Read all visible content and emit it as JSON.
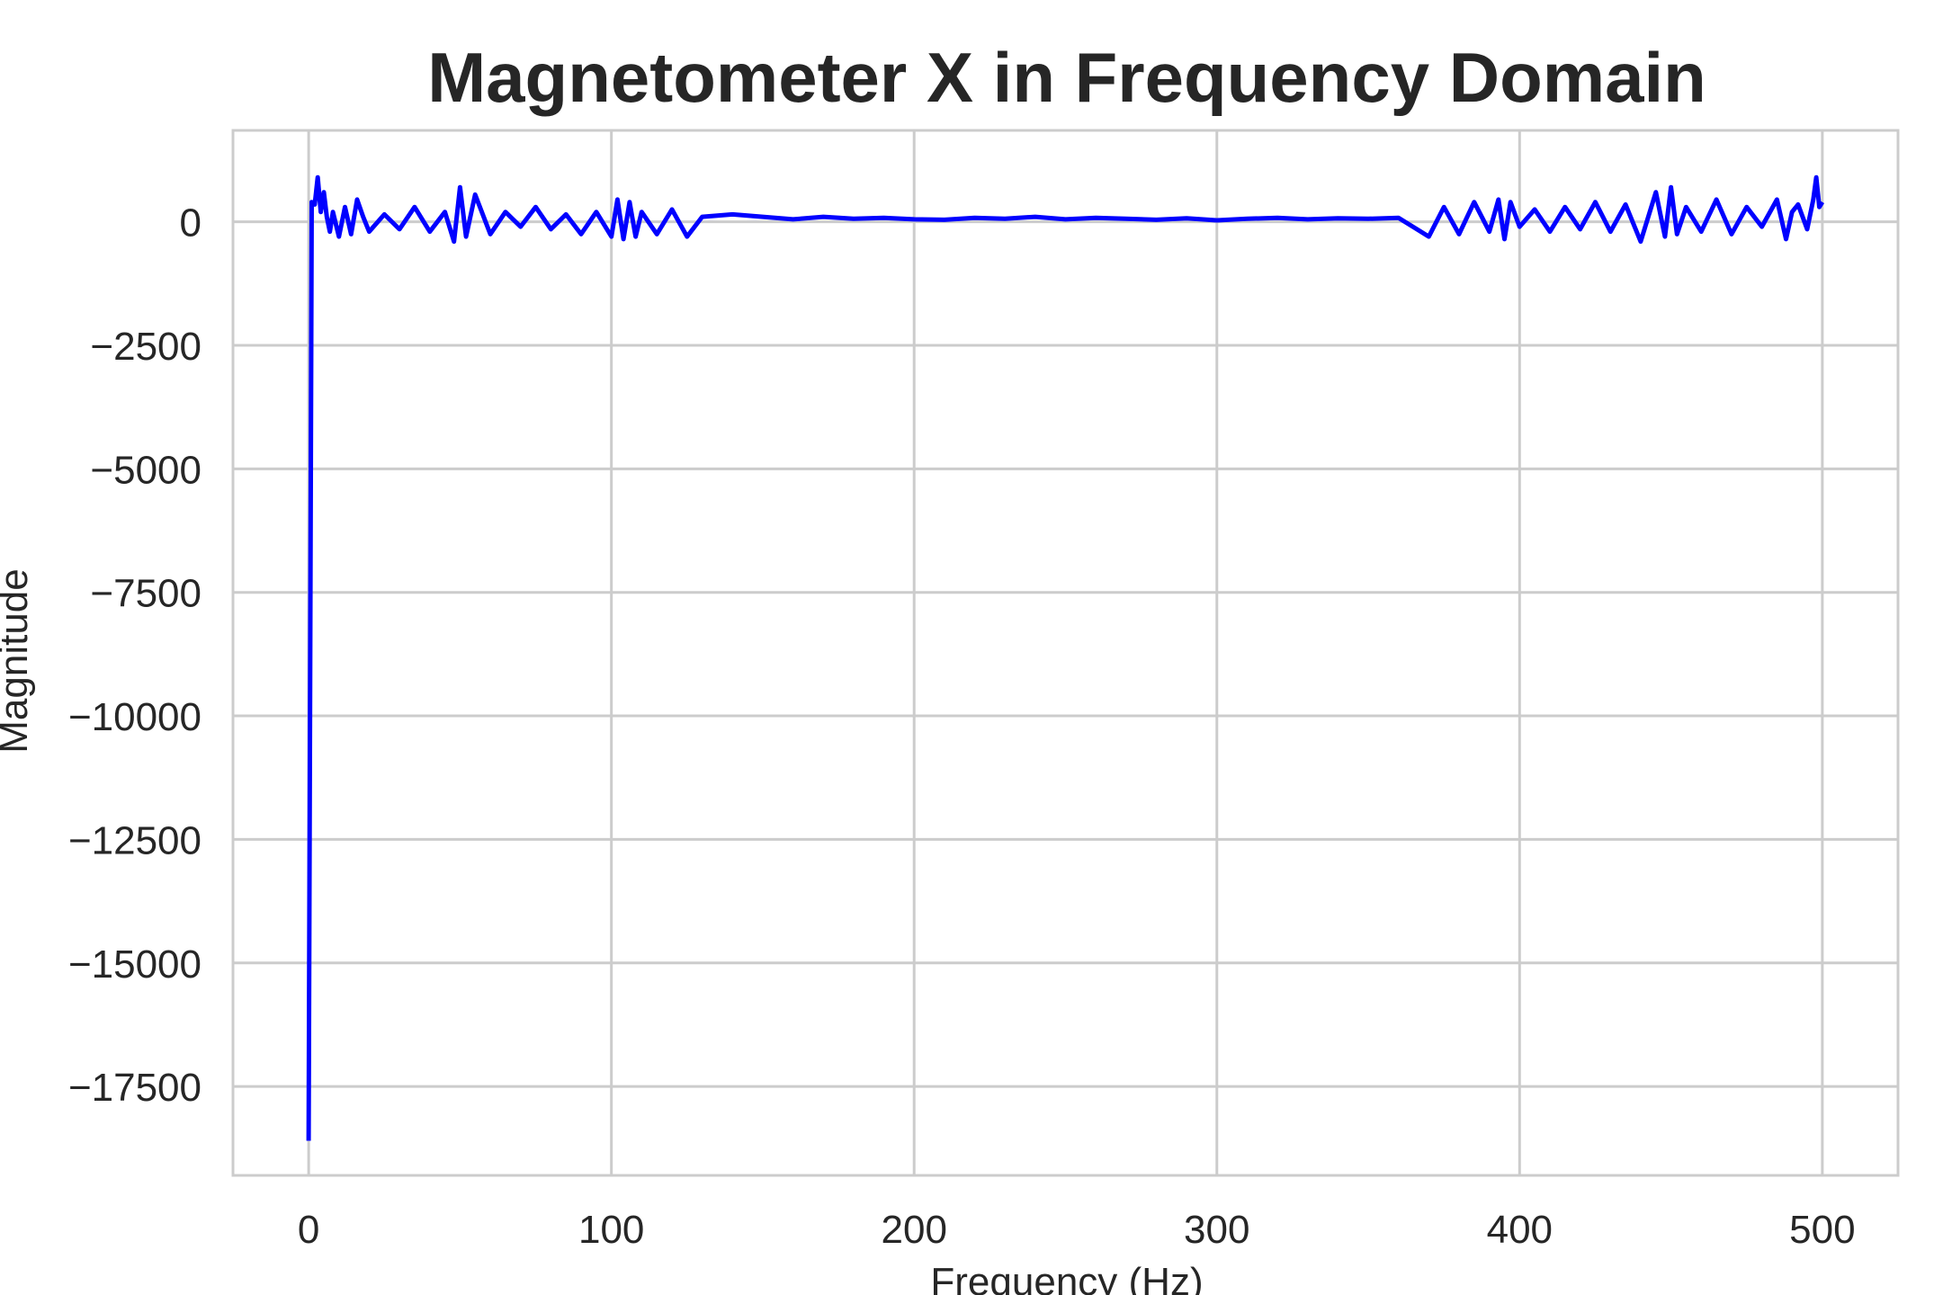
{
  "chart_data": {
    "type": "line",
    "title": "Magnetometer X in Frequency Domain",
    "xlabel": "Frequency (Hz)",
    "ylabel": "Magnitude",
    "xlim": [
      -25,
      525
    ],
    "ylim": [
      -19300,
      1850
    ],
    "xticks": [
      0,
      100,
      200,
      300,
      400,
      500
    ],
    "xtick_labels": [
      "0",
      "100",
      "200",
      "300",
      "400",
      "500"
    ],
    "yticks": [
      0,
      -2500,
      -5000,
      -7500,
      -10000,
      -12500,
      -15000,
      -17500
    ],
    "ytick_labels": [
      "0",
      "−2500",
      "−5000",
      "−7500",
      "−10000",
      "−12500",
      "−15000",
      "−17500"
    ],
    "grid": true,
    "legend": "none",
    "series": [
      {
        "color": "#0000ff",
        "x": [
          0,
          1,
          2,
          3,
          4,
          5,
          6,
          7,
          8,
          10,
          12,
          14,
          16,
          18,
          20,
          25,
          30,
          35,
          40,
          45,
          48,
          50,
          52,
          55,
          60,
          65,
          70,
          75,
          80,
          85,
          90,
          95,
          100,
          102,
          104,
          106,
          108,
          110,
          115,
          120,
          125,
          130,
          140,
          150,
          160,
          170,
          180,
          190,
          200,
          210,
          220,
          230,
          240,
          250,
          260,
          270,
          280,
          290,
          300,
          310,
          320,
          330,
          340,
          350,
          360,
          370,
          375,
          380,
          385,
          390,
          393,
          395,
          397,
          400,
          405,
          410,
          415,
          420,
          425,
          430,
          435,
          440,
          445,
          448,
          450,
          452,
          455,
          460,
          465,
          470,
          475,
          480,
          485,
          488,
          490,
          492,
          495,
          497,
          498,
          499,
          500
        ],
        "y": [
          -18600,
          400,
          350,
          900,
          200,
          600,
          100,
          -200,
          200,
          -300,
          300,
          -250,
          450,
          100,
          -200,
          150,
          -150,
          300,
          -200,
          200,
          -400,
          700,
          -300,
          550,
          -250,
          200,
          -100,
          300,
          -150,
          150,
          -250,
          200,
          -300,
          450,
          -350,
          400,
          -300,
          200,
          -250,
          250,
          -300,
          100,
          150,
          100,
          50,
          100,
          60,
          80,
          50,
          40,
          80,
          60,
          100,
          50,
          80,
          60,
          40,
          70,
          30,
          60,
          80,
          50,
          70,
          60,
          80,
          -300,
          300,
          -250,
          400,
          -200,
          450,
          -350,
          400,
          -100,
          250,
          -200,
          300,
          -150,
          400,
          -200,
          350,
          -400,
          600,
          -300,
          700,
          -250,
          300,
          -200,
          450,
          -250,
          300,
          -100,
          450,
          -350,
          200,
          350,
          -150,
          450,
          900,
          300,
          400
        ]
      }
    ]
  }
}
